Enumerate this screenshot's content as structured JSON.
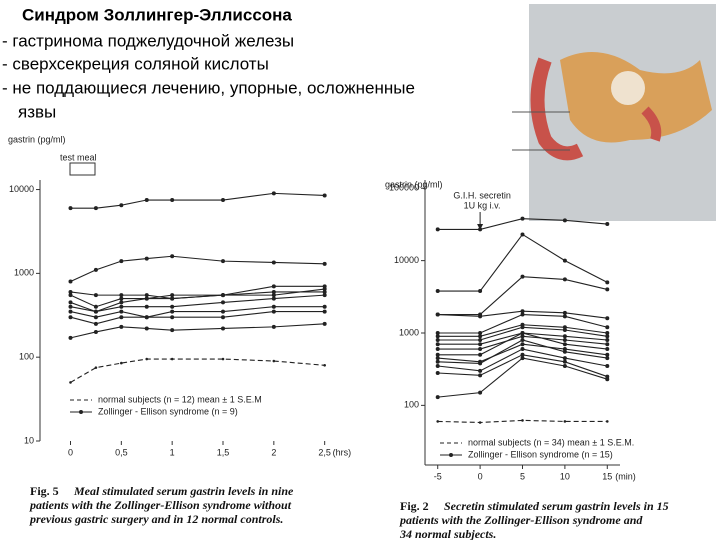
{
  "slide": {
    "title": "Синдром Золлингер-Эллиссона",
    "bullets": [
      "- гастринома поджелудочной железы",
      "-  сверхсекреция соляной кислоты",
      "-  не поддающиеся лечению, упорные, осложненные",
      "язвы"
    ]
  },
  "chart_data": [
    {
      "type": "line",
      "y_label": "gastrin (pg/ml)",
      "x_label": "(hrs)",
      "annotation": "test meal",
      "figure_label": "Fig. 5",
      "caption_lines": [
        "Meal stimulated serum gastrin levels in nine",
        "patients with the Zollinger-Ellison syndrome without",
        "previous gastric surgery and in 12 normal controls."
      ],
      "log_y": true,
      "color": "#222222",
      "x": [
        0,
        0.25,
        0.5,
        0.75,
        1,
        1.5,
        2,
        2.5
      ],
      "xlim": [
        -0.3,
        2.7
      ],
      "xticks": [
        0,
        {
          "value": 0.5,
          "label": "0,5"
        },
        1,
        {
          "value": 1.5,
          "label": "1,5"
        },
        2,
        {
          "value": 2.5,
          "label": "2,5"
        }
      ],
      "ylim": [
        10,
        13000
      ],
      "yticks": [
        10,
        100,
        1000,
        10000
      ],
      "series": [
        {
          "name": "normal subjects (n = 12) mean ± 1 S.E.M",
          "dashed": true,
          "values": [
            50,
            75,
            85,
            95,
            95,
            95,
            90,
            80
          ]
        },
        {
          "name": "Zollinger - Ellison syndrome (n = 9)",
          "values": [
            6000,
            6000,
            6500,
            7500,
            7500,
            7500,
            9000,
            8500
          ]
        },
        {
          "values": [
            800,
            1100,
            1400,
            1500,
            1600,
            1400,
            1350,
            1300
          ]
        },
        {
          "values": [
            600,
            550,
            550,
            550,
            500,
            550,
            550,
            650
          ]
        },
        {
          "values": [
            550,
            400,
            500,
            500,
            550,
            550,
            700,
            700
          ]
        },
        {
          "values": [
            450,
            350,
            450,
            500,
            500,
            550,
            600,
            600
          ]
        },
        {
          "values": [
            400,
            350,
            400,
            400,
            400,
            450,
            500,
            550
          ]
        },
        {
          "values": [
            350,
            300,
            350,
            300,
            350,
            350,
            400,
            400
          ]
        },
        {
          "values": [
            300,
            250,
            300,
            300,
            300,
            300,
            350,
            350
          ]
        },
        {
          "values": [
            170,
            200,
            230,
            220,
            210,
            220,
            230,
            250
          ]
        }
      ]
    },
    {
      "type": "line",
      "y_label": "gastrin (pg/ml)",
      "x_label": "(min)",
      "annotation": [
        "G.I.H. secretin",
        "1U kg i.v."
      ],
      "figure_label": "Fig. 2",
      "caption_lines": [
        "Secretin stimulated serum gastrin levels in 15",
        "patients with the Zollinger-Ellison syndrome and",
        "34 normal subjects."
      ],
      "log_y": true,
      "color": "#222222",
      "x": [
        -5,
        0,
        5,
        10,
        15
      ],
      "xlim": [
        -6.5,
        16.5
      ],
      "xticks": [
        -5,
        0,
        5,
        10,
        15
      ],
      "ylim": [
        15,
        130000
      ],
      "yticks": [
        100,
        1000,
        10000,
        100000
      ],
      "series": [
        {
          "name": "normal subjects (n = 34) mean ± 1 S.E.M.",
          "dashed": true,
          "values": [
            60,
            58,
            62,
            60,
            60
          ]
        },
        {
          "name": "Zollinger - Ellison syndrome (n = 15)",
          "values": [
            27000,
            27000,
            38000,
            36000,
            32000
          ]
        },
        {
          "values": [
            3800,
            3800,
            23000,
            10000,
            5000
          ]
        },
        {
          "values": [
            1800,
            1800,
            6000,
            5500,
            4000
          ]
        },
        {
          "values": [
            1800,
            1700,
            2000,
            1900,
            1600
          ]
        },
        {
          "values": [
            1000,
            1000,
            1800,
            1700,
            1200
          ]
        },
        {
          "values": [
            900,
            900,
            1300,
            1200,
            1000
          ]
        },
        {
          "values": [
            800,
            800,
            1200,
            1100,
            900
          ]
        },
        {
          "values": [
            700,
            700,
            1000,
            900,
            800
          ]
        },
        {
          "values": [
            600,
            600,
            900,
            800,
            700
          ]
        },
        {
          "values": [
            500,
            500,
            1000,
            700,
            600
          ]
        },
        {
          "values": [
            450,
            400,
            700,
            600,
            500
          ]
        },
        {
          "values": [
            400,
            380,
            800,
            550,
            450
          ]
        },
        {
          "values": [
            350,
            300,
            600,
            450,
            350
          ]
        },
        {
          "values": [
            280,
            260,
            500,
            400,
            250
          ]
        },
        {
          "values": [
            130,
            150,
            450,
            350,
            230
          ]
        }
      ]
    }
  ]
}
